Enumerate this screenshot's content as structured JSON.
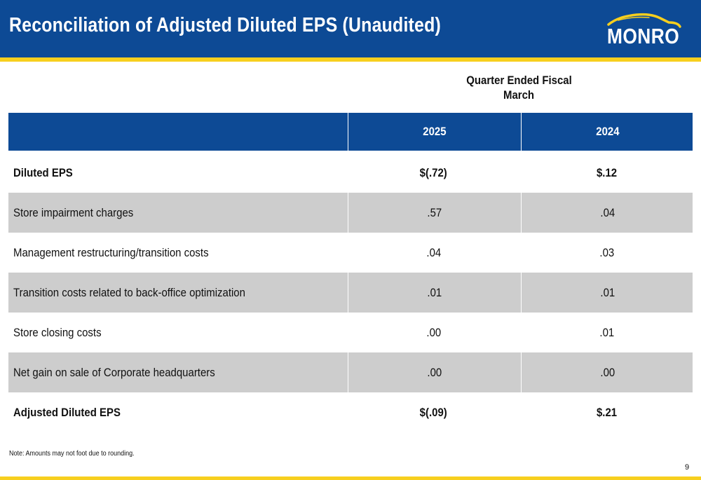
{
  "header": {
    "title": "Reconciliation of Adjusted Diluted EPS (Unaudited)",
    "logo_text": "MONRO",
    "logo_icon": "car-silhouette-icon",
    "colors": {
      "navy": "#0d4a95",
      "yellow": "#f7cf1e",
      "row_shade": "#cdcdcd"
    }
  },
  "table": {
    "group_header_line1": "Quarter Ended Fiscal",
    "group_header_line2": "March",
    "columns": [
      "",
      "2025",
      "2024"
    ],
    "rows": [
      {
        "label": "Diluted EPS",
        "v2025": "$(.72)",
        "v2024": "$.12"
      },
      {
        "label": "Store impairment charges",
        "v2025": ".57",
        "v2024": ".04"
      },
      {
        "label": "Management restructuring/transition costs",
        "v2025": ".04",
        "v2024": ".03"
      },
      {
        "label": "Transition costs related to back-office optimization",
        "v2025": ".01",
        "v2024": ".01"
      },
      {
        "label": "Store closing costs",
        "v2025": ".00",
        "v2024": ".01"
      },
      {
        "label": "Net gain on sale of Corporate headquarters",
        "v2025": ".00",
        "v2024": ".00"
      },
      {
        "label": "Adjusted Diluted EPS",
        "v2025": "$(.09)",
        "v2024": "$.21"
      }
    ]
  },
  "footer": {
    "note": "Note: Amounts may not foot due to rounding.",
    "page_number": "9"
  }
}
